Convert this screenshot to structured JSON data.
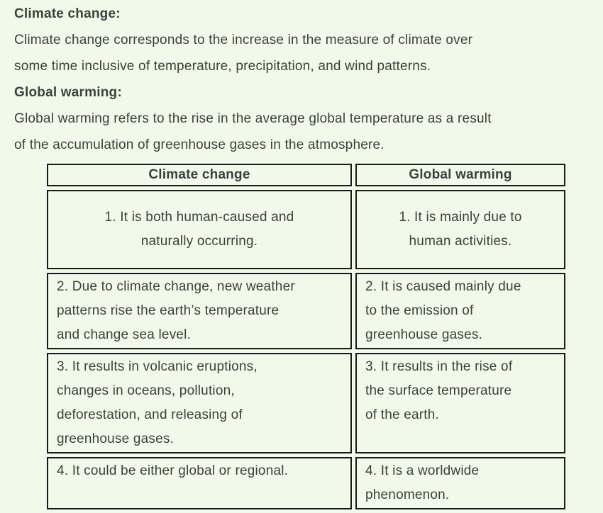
{
  "theme": {
    "background_color": "#f1f9ea",
    "text_color": "#3b403c",
    "table_border_color": "#1a1a1a"
  },
  "intro": {
    "heading1": "Climate change:",
    "para1": "Climate change corresponds to the increase in the measure of climate over\nsome time inclusive of temperature, precipitation, and wind patterns.",
    "heading2": "Global warming:",
    "para2": "Global warming refers to the rise in the average global temperature as a result\nof the accumulation of greenhouse gases in the atmosphere."
  },
  "comparison_table": {
    "headers": [
      "Climate change",
      "Global warming"
    ],
    "rows": [
      [
        "1. It is both human-caused and\nnaturally occurring.",
        "1. It is mainly due to\nhuman activities."
      ],
      [
        "2. Due to climate change, new weather\npatterns rise the earth’s temperature\nand change sea level.",
        "2. It is caused mainly due\nto the emission of\ngreenhouse gases."
      ],
      [
        "3. It results in volcanic eruptions,\nchanges in oceans, pollution,\ndeforestation, and releasing of\ngreenhouse gases.",
        "3. It results in the rise of\nthe surface temperature\nof the earth."
      ],
      [
        "4. It could be either global or regional.",
        "4. It is a worldwide\nphenomenon."
      ]
    ]
  }
}
